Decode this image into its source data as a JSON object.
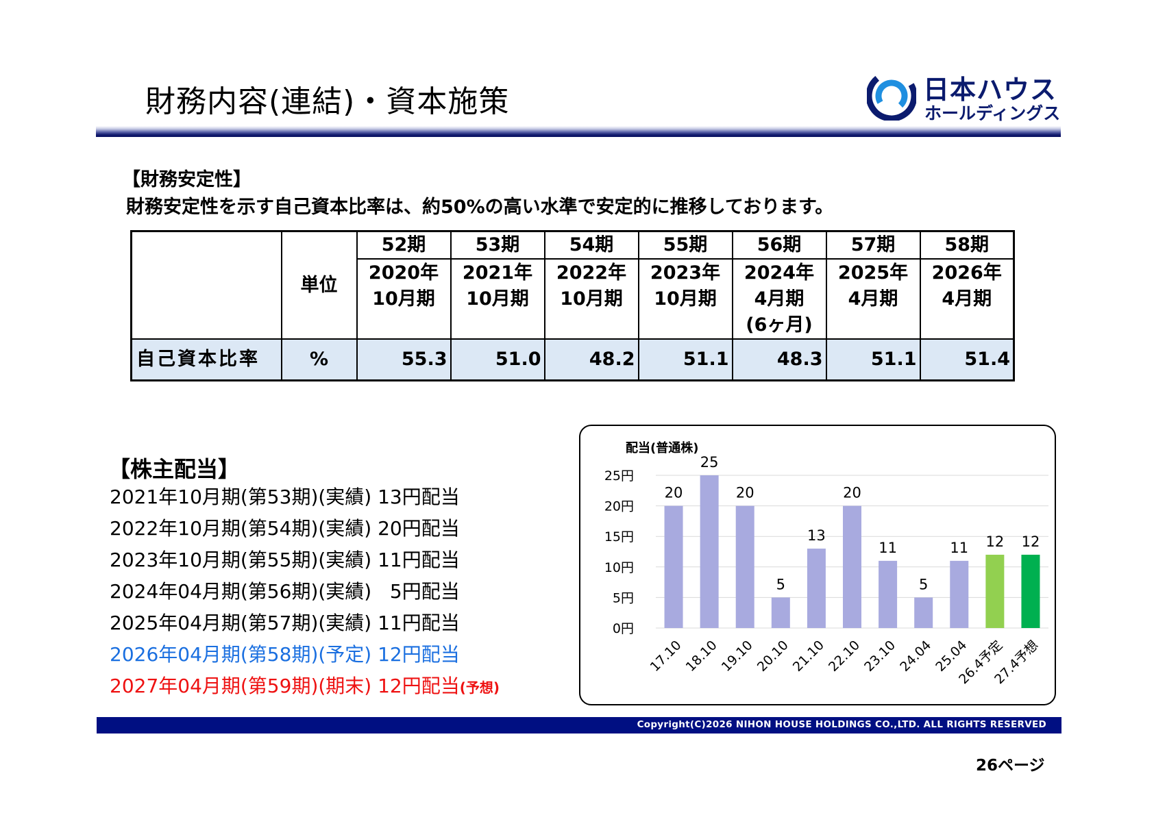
{
  "page": {
    "title": "財務内容(連結)・資本施策",
    "page_number": "26ページ"
  },
  "logo": {
    "line1": "日本ハウス",
    "line2": "ホールディングス",
    "mark_icon": "nihon-house-swirl-logo"
  },
  "financial_stability": {
    "heading": "【財務安定性】",
    "description": "財務安定性を示す自己資本比率は、約50%の高い水準で安定的に推移しております。",
    "unit_header": "単位",
    "columns": [
      {
        "period": "52期",
        "date_lines": [
          "2020年",
          "10月期"
        ]
      },
      {
        "period": "53期",
        "date_lines": [
          "2021年",
          "10月期"
        ]
      },
      {
        "period": "54期",
        "date_lines": [
          "2022年",
          "10月期"
        ]
      },
      {
        "period": "55期",
        "date_lines": [
          "2023年",
          "10月期"
        ]
      },
      {
        "period": "56期",
        "date_lines": [
          "2024年",
          "4月期",
          "(6ヶ月)"
        ]
      },
      {
        "period": "57期",
        "date_lines": [
          "2025年",
          "4月期"
        ]
      },
      {
        "period": "58期",
        "date_lines": [
          "2026年",
          "4月期"
        ]
      }
    ],
    "row": {
      "label": "自己資本比率",
      "unit": "%",
      "values": [
        "55.3",
        "51.0",
        "48.2",
        "51.1",
        "48.3",
        "51.1",
        "51.4"
      ]
    }
  },
  "dividends": {
    "heading": "【株主配当】",
    "lines": [
      {
        "text": "2021年10月期(第53期)(実績) 13円配当",
        "style": "normal"
      },
      {
        "text": "2022年10月期(第54期)(実績) 20円配当",
        "style": "normal"
      },
      {
        "text": "2023年10月期(第55期)(実績) 11円配当",
        "style": "normal"
      },
      {
        "text": "2024年04月期(第56期)(実績)   5円配当",
        "style": "normal"
      },
      {
        "text": "2025年04月期(第57期)(実績) 11円配当",
        "style": "normal"
      },
      {
        "text": "2026年04月期(第58期)(予定) 12円配当",
        "style": "blue"
      },
      {
        "text": "2027年04月期(第59期)(期末) 12円配当",
        "style": "red",
        "note": "(予想)"
      }
    ]
  },
  "chart_data": {
    "type": "bar",
    "title": "配当(普通株)",
    "categories": [
      "17.10",
      "18.10",
      "19.10",
      "20.10",
      "21.10",
      "22.10",
      "23.10",
      "24.04",
      "25.04",
      "26.4予定",
      "27.4予想"
    ],
    "values": [
      20,
      25,
      20,
      5,
      13,
      20,
      11,
      5,
      11,
      12,
      12
    ],
    "data_labels": [
      "20",
      "25",
      "20",
      "5",
      "13",
      "20",
      "11",
      "5",
      "11",
      "12",
      "12"
    ],
    "bar_colors": [
      "#a8aadf",
      "#a8aadf",
      "#a8aadf",
      "#a8aadf",
      "#a8aadf",
      "#a8aadf",
      "#a8aadf",
      "#a8aadf",
      "#a8aadf",
      "#92d050",
      "#00b050"
    ],
    "y_ticks": [
      0,
      5,
      10,
      15,
      20,
      25
    ],
    "y_tick_labels": [
      "0円",
      "5円",
      "10円",
      "15円",
      "20円",
      "25円"
    ],
    "ylim": [
      0,
      25
    ],
    "grid": true,
    "legend": "none"
  },
  "footer": {
    "copyright": "Copyright(C)2026 NIHON HOUSE HOLDINGS CO.,LTD. ALL RIGHTS RESERVED"
  },
  "colors": {
    "brand_navy": "#000f82",
    "table_value_bg": "#dce8f5",
    "forecast_blue": "#1a6fe0",
    "forecast_red": "#ee1111"
  }
}
